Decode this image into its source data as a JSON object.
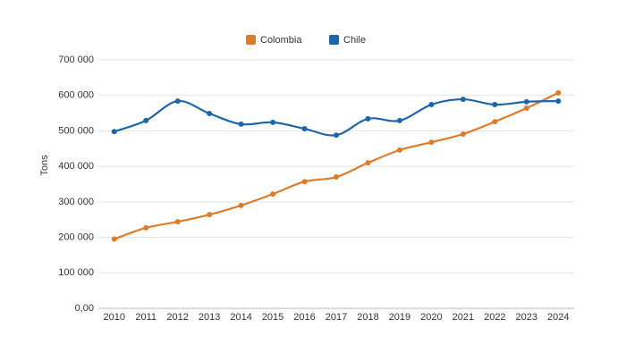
{
  "chart_data": {
    "type": "line",
    "y_label": "Tons",
    "categories": [
      "2010",
      "2011",
      "2012",
      "2013",
      "2014",
      "2015",
      "2016",
      "2017",
      "2018",
      "2019",
      "2020",
      "2021",
      "2022",
      "2023",
      "2024"
    ],
    "series": [
      {
        "name": "Colombia",
        "color": "#e07b28",
        "values": [
          195000,
          227000,
          244000,
          264000,
          290000,
          322000,
          357000,
          370000,
          410000,
          446000,
          468000,
          491000,
          526000,
          564000,
          607000
        ]
      },
      {
        "name": "Chile",
        "color": "#1f66a8",
        "values": [
          498000,
          529000,
          584000,
          549000,
          519000,
          524000,
          506000,
          488000,
          534000,
          529000,
          574000,
          589000,
          574000,
          582000,
          584000
        ]
      }
    ],
    "ylim": [
      0,
      700000
    ],
    "yticks": [
      {
        "value": 0,
        "label": "0,00"
      },
      {
        "value": 100000,
        "label": "100 000"
      },
      {
        "value": 200000,
        "label": "200 000"
      },
      {
        "value": 300000,
        "label": "300 000"
      },
      {
        "value": 400000,
        "label": "400 000"
      },
      {
        "value": 500000,
        "label": "500 000"
      },
      {
        "value": 600000,
        "label": "600 000"
      },
      {
        "value": 700000,
        "label": "700 000"
      }
    ],
    "grid": true,
    "legend": "top"
  }
}
